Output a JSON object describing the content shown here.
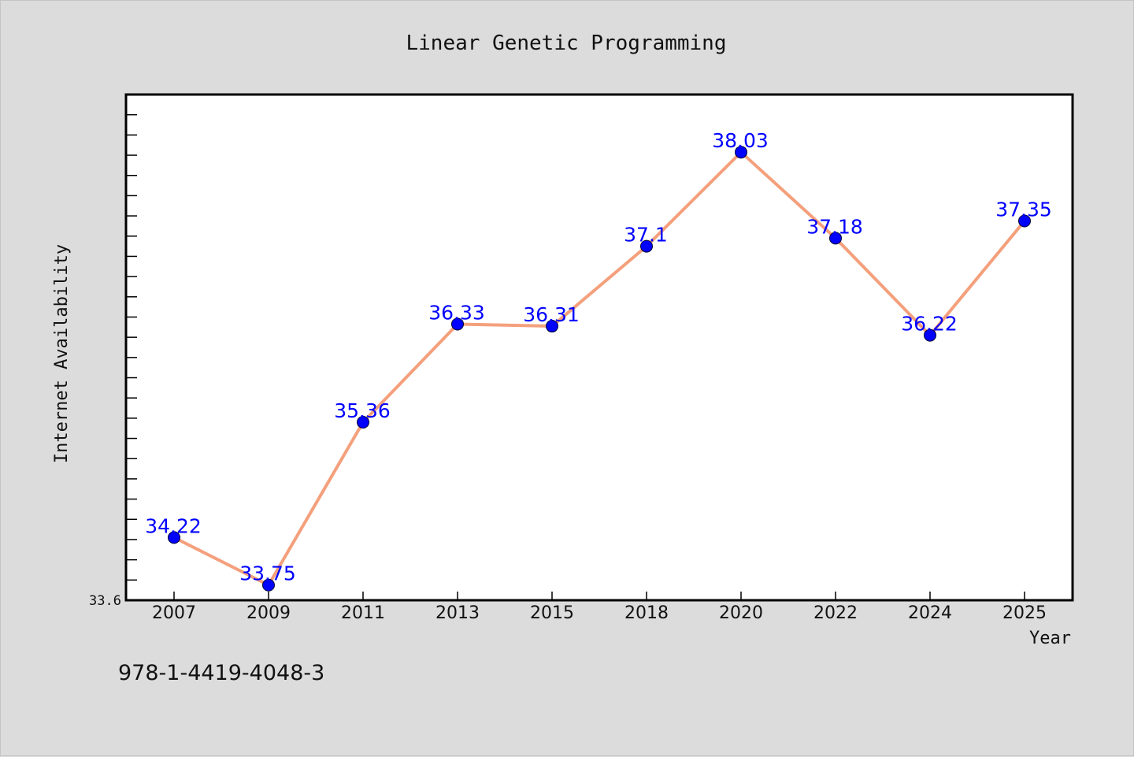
{
  "chart_data": {
    "type": "line",
    "title": "Linear Genetic Programming",
    "xlabel": "Year",
    "ylabel": "Internet Availability",
    "categories": [
      "2007",
      "2009",
      "2011",
      "2013",
      "2015",
      "2018",
      "2020",
      "2022",
      "2024",
      "2025"
    ],
    "series": [
      {
        "values": [
          34.22,
          33.75,
          35.36,
          36.33,
          36.31,
          37.1,
          38.03,
          37.18,
          36.22,
          37.35
        ],
        "line_color": "#f4a07c",
        "marker_color": "#0000ff"
      }
    ],
    "ylim": [
      33.6,
      38.6
    ],
    "y_min_label": "33.6",
    "grid": false,
    "legend": "none",
    "data_label_color": "#0000ff"
  },
  "annotation": {
    "isbn": "978-1-4419-4048-3"
  },
  "colors": {
    "background": "#dcdcdc",
    "plot_background": "#ffffff",
    "axis": "#000000"
  }
}
